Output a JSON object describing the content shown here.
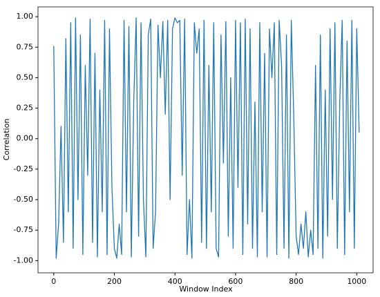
{
  "chart_data": {
    "type": "line",
    "xlabel": "Window Index",
    "ylabel": "Correlation",
    "xlim": [
      -52,
      1054
    ],
    "ylim": [
      -1.1,
      1.08
    ],
    "xticks": [
      0,
      200,
      400,
      600,
      800,
      1000
    ],
    "yticks": [
      {
        "value": -1,
        "label": "-1.00"
      },
      {
        "value": -0.75,
        "label": "-0.75"
      },
      {
        "value": -0.5,
        "label": "-0.50"
      },
      {
        "value": -0.25,
        "label": "-0.25"
      },
      {
        "value": 0,
        "label": "0.00"
      },
      {
        "value": 0.25,
        "label": "0.25"
      },
      {
        "value": 0.5,
        "label": "0.50"
      },
      {
        "value": 0.75,
        "label": "0.75"
      },
      {
        "value": 1,
        "label": "1.00"
      }
    ],
    "grid": false,
    "x": [
      0,
      8,
      16,
      24,
      32,
      40,
      48,
      56,
      64,
      72,
      80,
      88,
      96,
      104,
      112,
      120,
      128,
      136,
      144,
      152,
      160,
      168,
      176,
      184,
      192,
      200,
      208,
      216,
      224,
      232,
      240,
      248,
      256,
      264,
      272,
      280,
      288,
      296,
      304,
      312,
      320,
      328,
      336,
      344,
      352,
      360,
      368,
      376,
      384,
      392,
      400,
      408,
      416,
      424,
      432,
      440,
      448,
      456,
      464,
      472,
      480,
      488,
      496,
      504,
      512,
      520,
      528,
      536,
      544,
      552,
      560,
      568,
      576,
      584,
      592,
      600,
      608,
      616,
      624,
      632,
      640,
      648,
      656,
      664,
      672,
      680,
      688,
      696,
      704,
      712,
      720,
      728,
      736,
      744,
      752,
      760,
      768,
      776,
      784,
      792,
      800,
      808,
      816,
      824,
      832,
      840,
      848,
      856,
      864,
      872,
      880,
      888,
      896,
      904,
      912,
      920,
      928,
      936,
      944,
      952,
      960,
      968,
      976,
      984,
      992,
      1000,
      1008
    ],
    "series": [
      {
        "color": "#1f77b4",
        "values": [
          0.76,
          -0.98,
          -0.7,
          0.1,
          -0.85,
          0.82,
          -0.6,
          0.95,
          -0.9,
          0.99,
          -0.5,
          0.85,
          -0.95,
          0.6,
          -0.3,
          0.98,
          -0.85,
          0.7,
          -0.97,
          0.4,
          -0.6,
          0.97,
          -0.95,
          0.9,
          -0.4,
          -0.9,
          -0.98,
          -0.7,
          -0.95,
          0.97,
          -0.6,
          0.92,
          -0.97,
          0.3,
          0.99,
          -0.8,
          0.95,
          -0.5,
          -0.97,
          0.85,
          0.98,
          -0.9,
          -0.6,
          0.93,
          0.5,
          0.96,
          0.2,
          0.97,
          -0.5,
          0.9,
          0.99,
          0.95,
          0.97,
          -0.3,
          0.98,
          -0.95,
          -0.5,
          -0.98,
          0.95,
          0.7,
          0.9,
          -0.85,
          0.97,
          -0.9,
          0.6,
          -0.6,
          0.95,
          -0.9,
          -0.97,
          0.85,
          -0.2,
          0.96,
          -0.8,
          0.5,
          -0.9,
          0.97,
          -0.4,
          0.95,
          -0.95,
          0.98,
          -0.7,
          0.9,
          -0.9,
          0.3,
          -0.97,
          0.95,
          -0.6,
          0.7,
          -0.97,
          0.9,
          0.5,
          0.95,
          -0.95,
          0.97,
          0.6,
          -0.9,
          0.85,
          -0.98,
          0.97,
          0.2,
          -0.8,
          -0.95,
          -0.7,
          -0.9,
          -0.6,
          -0.97,
          -0.75,
          -0.95,
          0.6,
          -0.9,
          0.85,
          -0.98,
          0.4,
          -0.8,
          0.9,
          -0.5,
          0.95,
          -0.9,
          0.3,
          0.97,
          -0.95,
          0.8,
          -0.6,
          0.97,
          -0.9,
          0.9,
          0.05
        ]
      }
    ]
  }
}
